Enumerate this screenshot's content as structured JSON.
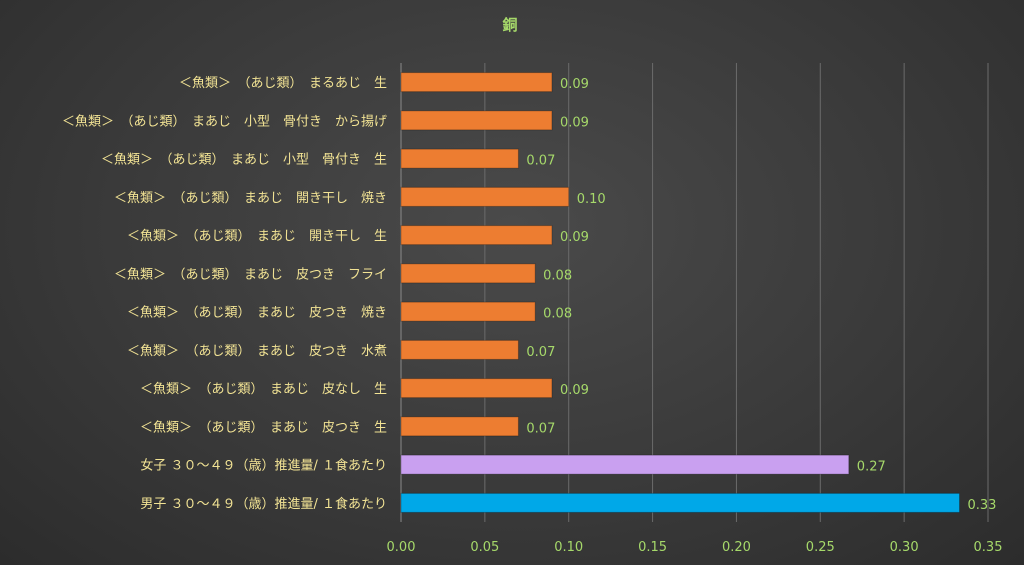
{
  "chart_data": {
    "type": "bar",
    "orientation": "horizontal",
    "title": "銅",
    "categories": [
      "＜魚類＞　（あじ類）　まるあじ　生",
      "＜魚類＞　（あじ類）　まあじ　小型　骨付き　から揚げ",
      "＜魚類＞　（あじ類）　まあじ　小型　骨付き　生",
      "＜魚類＞　（あじ類）　まあじ　開き干し　焼き",
      "＜魚類＞　（あじ類）　まあじ　開き干し　生",
      "＜魚類＞　（あじ類）　まあじ　皮つき　フライ",
      "＜魚類＞　（あじ類）　まあじ　皮つき　焼き",
      "＜魚類＞　（あじ類）　まあじ　皮つき　水煮",
      "＜魚類＞　（あじ類）　まあじ　皮なし　生",
      "＜魚類＞　（あじ類）　まあじ　皮つき　生",
      "女子 ３０～４９（歳）推進量/ １食あたり",
      "男子 ３０～４９（歳）推進量/ １食あたり"
    ],
    "values": [
      0.09,
      0.09,
      0.07,
      0.1,
      0.09,
      0.08,
      0.08,
      0.07,
      0.09,
      0.07,
      0.267,
      0.333
    ],
    "data_labels": [
      "0.09",
      "0.09",
      "0.07",
      "0.10",
      "0.09",
      "0.08",
      "0.08",
      "0.07",
      "0.09",
      "0.07",
      "0.27",
      "0.33"
    ],
    "bar_colors": [
      "#ed7d31",
      "#ed7d31",
      "#ed7d31",
      "#ed7d31",
      "#ed7d31",
      "#ed7d31",
      "#ed7d31",
      "#ed7d31",
      "#ed7d31",
      "#ed7d31",
      "#c9a0f0",
      "#00a8e8"
    ],
    "xlim": [
      0,
      0.35
    ],
    "xticks": [
      "0.00",
      "0.05",
      "0.10",
      "0.15",
      "0.20",
      "0.25",
      "0.30",
      "0.35"
    ],
    "grid": true,
    "legend": "none"
  }
}
